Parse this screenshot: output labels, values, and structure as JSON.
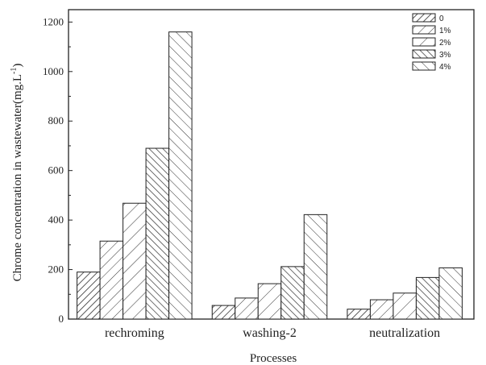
{
  "chart_data": {
    "type": "bar",
    "categories": [
      "rechroming",
      "washing-2",
      "neutralization"
    ],
    "series": [
      {
        "name": "0",
        "values": [
          190,
          55,
          40
        ]
      },
      {
        "name": "1%",
        "values": [
          315,
          85,
          78
        ]
      },
      {
        "name": "2%",
        "values": [
          468,
          143,
          105
        ]
      },
      {
        "name": "3%",
        "values": [
          690,
          212,
          168
        ]
      },
      {
        "name": "4%",
        "values": [
          1160,
          422,
          207
        ]
      }
    ],
    "xlabel": "Processes",
    "ylabel": "Chrome concentration in wastewater(mg.L",
    "ylabel_sup": "-1",
    "ylabel_close": ")",
    "ylim": [
      0,
      1250
    ],
    "yticks": [
      0,
      200,
      400,
      600,
      800,
      1000,
      1200
    ],
    "legend_position": "top-right",
    "grid": false
  }
}
